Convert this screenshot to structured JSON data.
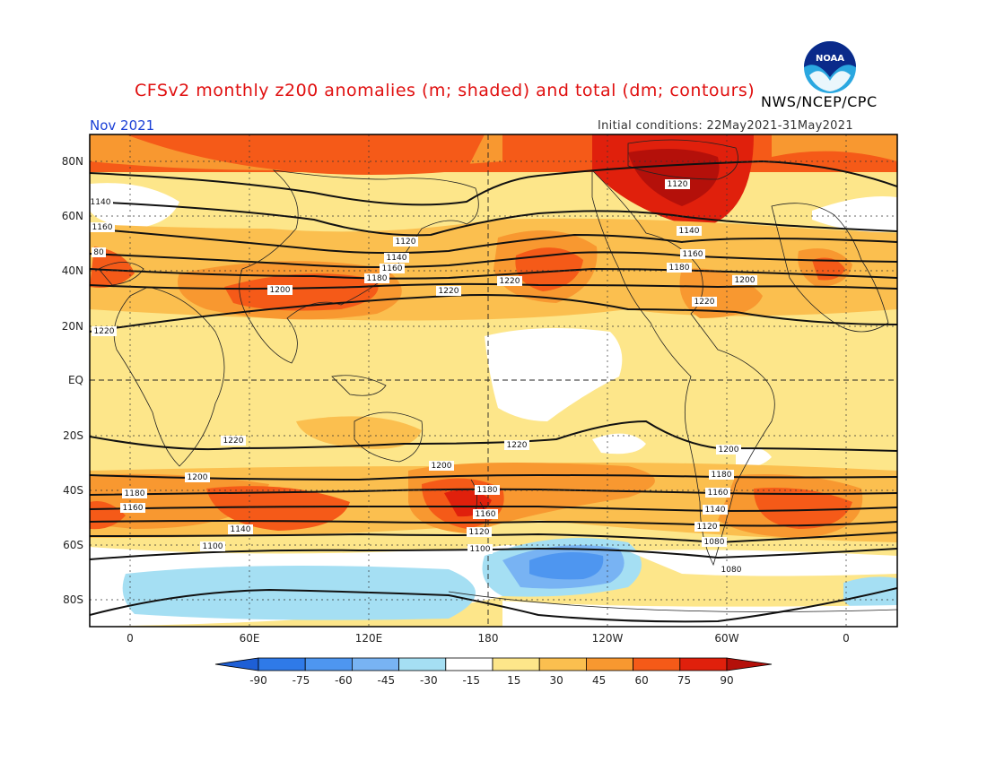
{
  "header": {
    "title": "CFSv2 monthly z200 anomalies (m; shaded) and total (dm; contours)",
    "agency": "NWS/NCEP/CPC",
    "valid_month": "Nov 2021",
    "initial_conditions": "Initial conditions: 22May2021-31May2021",
    "logo_text": "NOAA",
    "logo_icon": "noaa-logo-icon"
  },
  "map": {
    "projection": "cylindrical-equidistant",
    "lat_labels": [
      "80N",
      "60N",
      "40N",
      "20N",
      "EQ",
      "20S",
      "40S",
      "60S",
      "80S"
    ],
    "lon_labels": [
      "0",
      "60E",
      "120E",
      "180",
      "120W",
      "60W",
      "0"
    ],
    "contour_labels": [
      "1140",
      "1160",
      "1120",
      "1140",
      "1160",
      "1180",
      "1200",
      "1220",
      "1120",
      "1140",
      "1160",
      "1180",
      "1200",
      "1220",
      "80",
      "1220",
      "1220",
      "1220",
      "1220",
      "1200",
      "1200",
      "1200",
      "1180",
      "1180",
      "1180",
      "1160",
      "1160",
      "1160",
      "1140",
      "1140",
      "1120",
      "1120",
      "1100",
      "1100",
      "1080",
      "1080"
    ]
  },
  "colorbar": {
    "labels": [
      "-90",
      "-75",
      "-60",
      "-45",
      "-30",
      "-15",
      "15",
      "30",
      "45",
      "60",
      "75",
      "90"
    ],
    "colors": [
      "#1e5fd6",
      "#2f7ae8",
      "#4e96f0",
      "#78b3f3",
      "#a5dff3",
      "#ffffff",
      "#fde68a",
      "#fbbf4f",
      "#f89830",
      "#f55a18",
      "#e0200c",
      "#b4100a"
    ]
  }
}
